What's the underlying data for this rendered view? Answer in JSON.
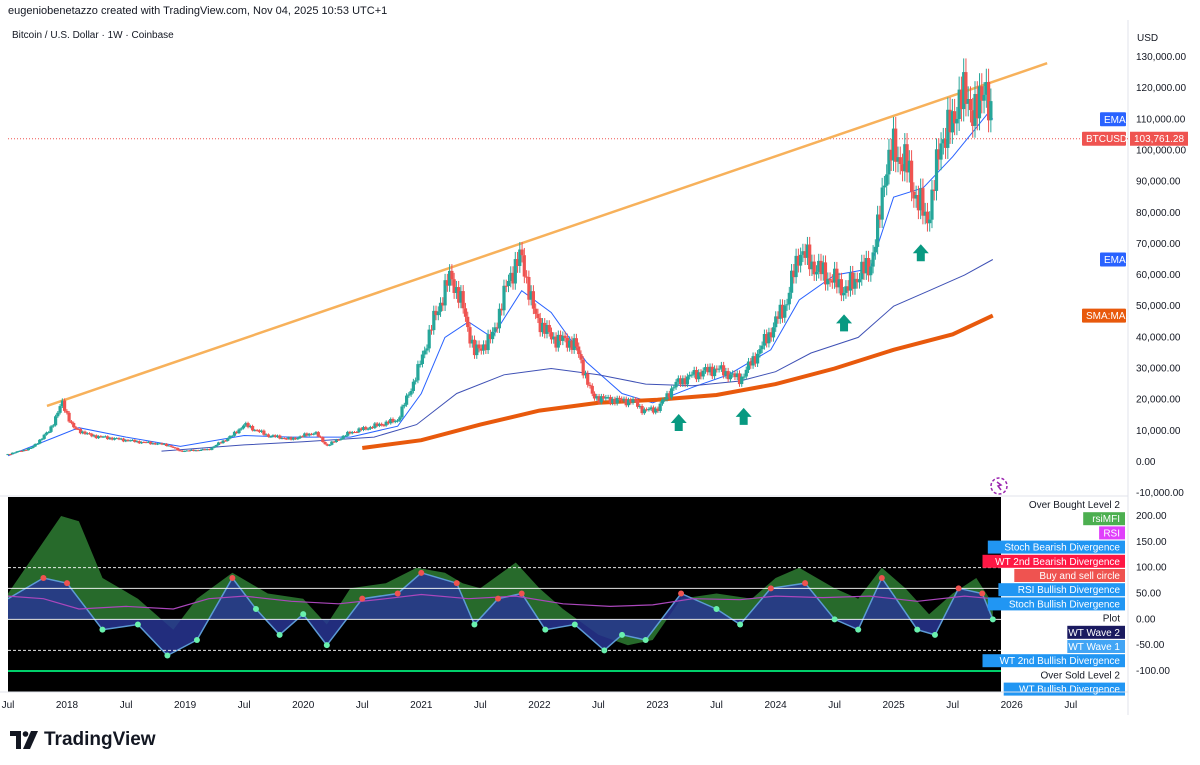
{
  "header": {
    "attribution": "eugeniobenetazzo created with TradingView.com, Nov 04, 2025 10:53 UTC+1",
    "symbol_title": "Bitcoin / U.S. Dollar · 1W · Coinbase"
  },
  "footer": {
    "brand": "TradingView"
  },
  "colors": {
    "up": "#26a69a",
    "down": "#ef5350",
    "trendline": "#f7b15b",
    "ema_fast": "#2962ff",
    "ema_slow": "#3f51b5",
    "sma": "#e8590c",
    "arrow": "#089981",
    "panel_bg": "#000000"
  },
  "chart_data": [
    {
      "type": "candlestick",
      "title": "Bitcoin / U.S. Dollar · 1W · Coinbase",
      "y_unit": "USD",
      "ylim": [
        -10000,
        135000
      ],
      "y_ticks": [
        "130,000.00",
        "120,000.00",
        "110,000.00",
        "100,000.00",
        "90,000.00",
        "80,000.00",
        "70,000.00",
        "60,000.00",
        "50,000.00",
        "40,000.00",
        "30,000.00",
        "20,000.00",
        "10,000.00",
        "0.00",
        "-10,000.00"
      ],
      "x_ticks": [
        "Jul",
        "2018",
        "Jul",
        "2019",
        "Jul",
        "2020",
        "Jul",
        "2021",
        "Jul",
        "2022",
        "Jul",
        "2023",
        "Jul",
        "2024",
        "Jul",
        "2025",
        "Jul",
        "2026",
        "Jul"
      ],
      "xlim": [
        2017.5,
        2026.9
      ],
      "price_path": [
        [
          2017.5,
          2500
        ],
        [
          2017.7,
          4500
        ],
        [
          2017.85,
          10000
        ],
        [
          2017.96,
          19000
        ],
        [
          2018.05,
          11000
        ],
        [
          2018.2,
          8500
        ],
        [
          2018.4,
          7500
        ],
        [
          2018.6,
          6500
        ],
        [
          2018.85,
          5500
        ],
        [
          2018.96,
          3500
        ],
        [
          2019.2,
          4000
        ],
        [
          2019.4,
          8500
        ],
        [
          2019.5,
          12000
        ],
        [
          2019.7,
          8500
        ],
        [
          2019.9,
          7300
        ],
        [
          2020.1,
          9500
        ],
        [
          2020.2,
          5200
        ],
        [
          2020.4,
          9500
        ],
        [
          2020.6,
          11500
        ],
        [
          2020.8,
          13500
        ],
        [
          2020.96,
          28000
        ],
        [
          2021.1,
          45000
        ],
        [
          2021.25,
          60000
        ],
        [
          2021.35,
          50000
        ],
        [
          2021.45,
          35000
        ],
        [
          2021.6,
          40000
        ],
        [
          2021.75,
          60000
        ],
        [
          2021.85,
          66000
        ],
        [
          2021.96,
          47000
        ],
        [
          2022.1,
          40000
        ],
        [
          2022.3,
          38000
        ],
        [
          2022.45,
          21000
        ],
        [
          2022.6,
          20000
        ],
        [
          2022.8,
          19500
        ],
        [
          2022.88,
          16500
        ],
        [
          2023.0,
          17000
        ],
        [
          2023.15,
          25000
        ],
        [
          2023.3,
          28000
        ],
        [
          2023.5,
          30000
        ],
        [
          2023.7,
          26500
        ],
        [
          2023.85,
          35000
        ],
        [
          2023.96,
          42000
        ],
        [
          2024.1,
          52000
        ],
        [
          2024.2,
          68000
        ],
        [
          2024.35,
          62000
        ],
        [
          2024.5,
          58000
        ],
        [
          2024.6,
          55000
        ],
        [
          2024.7,
          60000
        ],
        [
          2024.8,
          63000
        ],
        [
          2024.87,
          75000
        ],
        [
          2024.93,
          95000
        ],
        [
          2025.0,
          100000
        ],
        [
          2025.1,
          96000
        ],
        [
          2025.2,
          84000
        ],
        [
          2025.28,
          78000
        ],
        [
          2025.33,
          85000
        ],
        [
          2025.4,
          104000
        ],
        [
          2025.5,
          108000
        ],
        [
          2025.55,
          118000
        ],
        [
          2025.65,
          115000
        ],
        [
          2025.72,
          112000
        ],
        [
          2025.78,
          124000
        ],
        [
          2025.82,
          110000
        ],
        [
          2025.84,
          103761
        ]
      ],
      "series": [
        {
          "name": "EMA",
          "path": [
            [
              2017.5,
              2000
            ],
            [
              2017.9,
              8000
            ],
            [
              2018.1,
              11000
            ],
            [
              2018.5,
              8000
            ],
            [
              2018.96,
              5000
            ],
            [
              2019.5,
              8500
            ],
            [
              2019.9,
              8000
            ],
            [
              2020.4,
              8000
            ],
            [
              2020.8,
              11500
            ],
            [
              2021.0,
              22000
            ],
            [
              2021.2,
              40000
            ],
            [
              2021.4,
              45000
            ],
            [
              2021.6,
              40000
            ],
            [
              2021.85,
              55000
            ],
            [
              2022.1,
              48000
            ],
            [
              2022.4,
              32000
            ],
            [
              2022.7,
              22000
            ],
            [
              2022.96,
              19000
            ],
            [
              2023.3,
              24000
            ],
            [
              2023.6,
              28000
            ],
            [
              2023.96,
              36000
            ],
            [
              2024.2,
              52000
            ],
            [
              2024.5,
              60000
            ],
            [
              2024.8,
              62000
            ],
            [
              2025.0,
              85000
            ],
            [
              2025.25,
              88000
            ],
            [
              2025.5,
              98000
            ],
            [
              2025.8,
              112000
            ],
            [
              2025.84,
              110000
            ]
          ]
        },
        {
          "name": "EMA",
          "path": [
            [
              2018.8,
              3500
            ],
            [
              2019.5,
              5500
            ],
            [
              2020.0,
              6500
            ],
            [
              2020.6,
              8000
            ],
            [
              2020.96,
              12000
            ],
            [
              2021.3,
              22000
            ],
            [
              2021.7,
              28000
            ],
            [
              2022.1,
              30000
            ],
            [
              2022.5,
              28000
            ],
            [
              2022.9,
              25000
            ],
            [
              2023.3,
              24500
            ],
            [
              2023.7,
              26000
            ],
            [
              2024.0,
              29000
            ],
            [
              2024.3,
              35000
            ],
            [
              2024.7,
              40000
            ],
            [
              2025.0,
              50000
            ],
            [
              2025.3,
              55000
            ],
            [
              2025.6,
              60000
            ],
            [
              2025.84,
              65000
            ]
          ]
        },
        {
          "name": "SMA:MA",
          "path": [
            [
              2020.5,
              4500
            ],
            [
              2021.0,
              7000
            ],
            [
              2021.5,
              12000
            ],
            [
              2022.0,
              16500
            ],
            [
              2022.5,
              19000
            ],
            [
              2023.0,
              20000
            ],
            [
              2023.5,
              21500
            ],
            [
              2024.0,
              25000
            ],
            [
              2024.5,
              30000
            ],
            [
              2025.0,
              36000
            ],
            [
              2025.5,
              41000
            ],
            [
              2025.84,
              47000
            ]
          ]
        }
      ],
      "trendline": [
        [
          2017.83,
          18000
        ],
        [
          2026.3,
          128000
        ]
      ],
      "arrows_up": [
        [
          2023.18,
          12500
        ],
        [
          2023.73,
          14500
        ],
        [
          2024.58,
          44500
        ],
        [
          2025.23,
          67000
        ]
      ],
      "price_labels": [
        {
          "name": "EMA",
          "value": 110000,
          "color": "#2962ff"
        },
        {
          "name": "BTCUSD",
          "value": 103761.28,
          "display": "103,761.28",
          "color": "#ef5350"
        },
        {
          "name": "EMA",
          "value": 65000,
          "color": "#2962ff"
        },
        {
          "name": "SMA:MA",
          "value": 47000,
          "color": "#e8590c"
        }
      ]
    },
    {
      "type": "oscillator",
      "ylim": [
        -145,
        235
      ],
      "y_ticks": [
        "200.00",
        "150.00",
        "100.00",
        "50.00",
        "0.00",
        "-50.00",
        "-100.00"
      ],
      "levels": [
        100,
        60,
        0,
        -60,
        -100
      ],
      "series": [
        {
          "name": "RSI+MFI",
          "path": [
            [
              2017.5,
              50
            ],
            [
              2017.8,
              150
            ],
            [
              2017.95,
              200
            ],
            [
              2018.1,
              190
            ],
            [
              2018.3,
              80
            ],
            [
              2018.6,
              40
            ],
            [
              2018.9,
              -20
            ],
            [
              2019.1,
              40
            ],
            [
              2019.4,
              90
            ],
            [
              2019.7,
              50
            ],
            [
              2020.0,
              40
            ],
            [
              2020.2,
              -10
            ],
            [
              2020.4,
              60
            ],
            [
              2020.7,
              70
            ],
            [
              2020.96,
              100
            ],
            [
              2021.2,
              90
            ],
            [
              2021.35,
              70
            ],
            [
              2021.5,
              60
            ],
            [
              2021.8,
              110
            ],
            [
              2022.0,
              60
            ],
            [
              2022.2,
              20
            ],
            [
              2022.5,
              -30
            ],
            [
              2022.75,
              -50
            ],
            [
              2022.96,
              -40
            ],
            [
              2023.2,
              40
            ],
            [
              2023.5,
              50
            ],
            [
              2023.8,
              40
            ],
            [
              2024.0,
              80
            ],
            [
              2024.2,
              100
            ],
            [
              2024.5,
              60
            ],
            [
              2024.7,
              40
            ],
            [
              2024.9,
              100
            ],
            [
              2025.1,
              60
            ],
            [
              2025.3,
              10
            ],
            [
              2025.5,
              50
            ],
            [
              2025.7,
              80
            ],
            [
              2025.84,
              30
            ]
          ]
        },
        {
          "name": "WT Wave 1",
          "path": [
            [
              2017.5,
              40
            ],
            [
              2017.8,
              80
            ],
            [
              2018.0,
              70
            ],
            [
              2018.3,
              -20
            ],
            [
              2018.6,
              -10
            ],
            [
              2018.85,
              -70
            ],
            [
              2019.1,
              -40
            ],
            [
              2019.4,
              80
            ],
            [
              2019.6,
              20
            ],
            [
              2019.8,
              -30
            ],
            [
              2020.0,
              10
            ],
            [
              2020.2,
              -50
            ],
            [
              2020.5,
              40
            ],
            [
              2020.8,
              50
            ],
            [
              2021.0,
              90
            ],
            [
              2021.3,
              70
            ],
            [
              2021.45,
              -10
            ],
            [
              2021.65,
              40
            ],
            [
              2021.85,
              50
            ],
            [
              2022.05,
              -20
            ],
            [
              2022.3,
              -10
            ],
            [
              2022.55,
              -60
            ],
            [
              2022.7,
              -30
            ],
            [
              2022.9,
              -40
            ],
            [
              2023.2,
              50
            ],
            [
              2023.5,
              20
            ],
            [
              2023.7,
              -10
            ],
            [
              2023.96,
              60
            ],
            [
              2024.25,
              70
            ],
            [
              2024.5,
              0
            ],
            [
              2024.7,
              -20
            ],
            [
              2024.9,
              80
            ],
            [
              2025.2,
              -20
            ],
            [
              2025.35,
              -30
            ],
            [
              2025.55,
              60
            ],
            [
              2025.75,
              50
            ],
            [
              2025.84,
              0
            ]
          ]
        },
        {
          "name": "Plot",
          "path": [
            [
              2017.5,
              45
            ],
            [
              2017.8,
              40
            ],
            [
              2018.1,
              20
            ],
            [
              2018.5,
              25
            ],
            [
              2018.9,
              20
            ],
            [
              2019.2,
              40
            ],
            [
              2019.5,
              45
            ],
            [
              2019.9,
              35
            ],
            [
              2020.3,
              30
            ],
            [
              2020.7,
              40
            ],
            [
              2021.0,
              48
            ],
            [
              2021.4,
              40
            ],
            [
              2021.8,
              45
            ],
            [
              2022.2,
              30
            ],
            [
              2022.6,
              25
            ],
            [
              2022.96,
              28
            ],
            [
              2023.3,
              40
            ],
            [
              2023.7,
              38
            ],
            [
              2024.0,
              45
            ],
            [
              2024.4,
              42
            ],
            [
              2024.8,
              45
            ],
            [
              2025.2,
              35
            ],
            [
              2025.6,
              45
            ],
            [
              2025.84,
              40
            ]
          ]
        }
      ],
      "legend": [
        {
          "name": "Over Bought Level 2",
          "bg": "#ffffff",
          "fg": "#131722"
        },
        {
          "name": "rsiMFI",
          "bg": "#4caf50",
          "fg": "#ffffff"
        },
        {
          "name": "RSI",
          "bg": "#e040fb",
          "fg": "#ffffff"
        },
        {
          "name": "Stoch Bearish Divergence",
          "bg": "#2196f3",
          "fg": "#ffffff"
        },
        {
          "name": "WT 2nd Bearish Divergence",
          "bg": "#ff1744",
          "fg": "#ffffff"
        },
        {
          "name": "Buy and sell circle",
          "bg": "#ef5350",
          "fg": "#ffffff"
        },
        {
          "name": "RSI Bullish Divergence",
          "bg": "#2196f3",
          "fg": "#ffffff"
        },
        {
          "name": "Stoch Bullish Divergence",
          "bg": "#2196f3",
          "fg": "#ffffff"
        },
        {
          "name": "Plot",
          "bg": "#ffffff",
          "fg": "#131722"
        },
        {
          "name": "WT Wave 2",
          "bg": "#1a1a60",
          "fg": "#ffffff"
        },
        {
          "name": "WT Wave 1",
          "bg": "#42a5f5",
          "fg": "#ffffff"
        },
        {
          "name": "WT 2nd Bullish Divergence",
          "bg": "#2196f3",
          "fg": "#ffffff"
        },
        {
          "name": "Over Sold Level 2",
          "bg": "#ffffff",
          "fg": "#131722"
        },
        {
          "name": "WT Bullish Divergence",
          "bg": "#2196f3",
          "fg": "#ffffff"
        }
      ]
    }
  ]
}
